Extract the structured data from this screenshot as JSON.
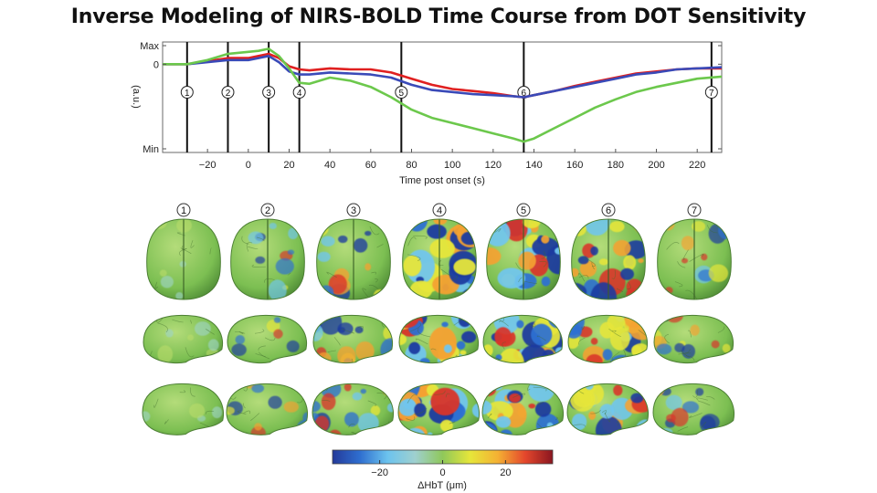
{
  "slide": {
    "title": "Inverse Modeling of NIRS-BOLD Time Course from DOT Sensitivity"
  },
  "chart_data": [
    {
      "type": "line",
      "title": "",
      "xlabel": "Time post onset (s)",
      "ylabel": "(a.u.)",
      "xlim": [
        -42,
        232
      ],
      "ylim": [
        0,
        1
      ],
      "x_ticks": [
        {
          "value": -20,
          "label": "−20"
        },
        {
          "value": 0,
          "label": "0"
        },
        {
          "value": 20,
          "label": "20"
        },
        {
          "value": 40,
          "label": "40"
        },
        {
          "value": 60,
          "label": "60"
        },
        {
          "value": 80,
          "label": "80"
        },
        {
          "value": 100,
          "label": "100"
        },
        {
          "value": 120,
          "label": "120"
        },
        {
          "value": 140,
          "label": "140"
        },
        {
          "value": 160,
          "label": "160"
        },
        {
          "value": 180,
          "label": "180"
        },
        {
          "value": 200,
          "label": "200"
        },
        {
          "value": 220,
          "label": "220"
        }
      ],
      "y_ticks": [
        {
          "value": 1.0,
          "label": "Max"
        },
        {
          "value": 0.82,
          "label": "0"
        },
        {
          "value": 0.0,
          "label": "Min"
        }
      ],
      "time_markers": [
        {
          "x": -30,
          "label": "1"
        },
        {
          "x": -10,
          "label": "2"
        },
        {
          "x": 10,
          "label": "3"
        },
        {
          "x": 25,
          "label": "4"
        },
        {
          "x": 75,
          "label": "5"
        },
        {
          "x": 135,
          "label": "6"
        },
        {
          "x": 227,
          "label": "7"
        }
      ],
      "series": [
        {
          "color": "#e02020",
          "x": [
            -42,
            -30,
            -20,
            -10,
            0,
            5,
            10,
            15,
            20,
            25,
            30,
            40,
            50,
            60,
            70,
            80,
            90,
            100,
            110,
            120,
            130,
            135,
            140,
            150,
            160,
            170,
            180,
            190,
            200,
            210,
            220,
            232
          ],
          "y": [
            0.82,
            0.82,
            0.85,
            0.88,
            0.88,
            0.9,
            0.92,
            0.88,
            0.8,
            0.77,
            0.76,
            0.78,
            0.77,
            0.77,
            0.74,
            0.68,
            0.62,
            0.58,
            0.56,
            0.54,
            0.51,
            0.5,
            0.52,
            0.56,
            0.61,
            0.65,
            0.69,
            0.73,
            0.75,
            0.77,
            0.78,
            0.78
          ]
        },
        {
          "color": "#3a4ab8",
          "x": [
            -42,
            -30,
            -20,
            -10,
            0,
            5,
            10,
            15,
            20,
            25,
            30,
            40,
            50,
            60,
            70,
            80,
            90,
            100,
            110,
            120,
            130,
            135,
            140,
            150,
            160,
            170,
            180,
            190,
            200,
            210,
            220,
            232
          ],
          "y": [
            0.82,
            0.82,
            0.84,
            0.86,
            0.86,
            0.88,
            0.9,
            0.84,
            0.75,
            0.72,
            0.72,
            0.74,
            0.73,
            0.72,
            0.69,
            0.62,
            0.57,
            0.55,
            0.53,
            0.52,
            0.51,
            0.5,
            0.52,
            0.56,
            0.6,
            0.64,
            0.68,
            0.72,
            0.74,
            0.77,
            0.78,
            0.79
          ]
        },
        {
          "color": "#6cc84c",
          "x": [
            -42,
            -30,
            -20,
            -10,
            0,
            5,
            10,
            15,
            20,
            25,
            30,
            40,
            50,
            60,
            70,
            80,
            90,
            100,
            110,
            120,
            130,
            135,
            140,
            150,
            160,
            170,
            180,
            190,
            200,
            210,
            220,
            232
          ],
          "y": [
            0.82,
            0.82,
            0.86,
            0.92,
            0.94,
            0.95,
            0.97,
            0.9,
            0.78,
            0.64,
            0.63,
            0.69,
            0.66,
            0.6,
            0.5,
            0.38,
            0.3,
            0.25,
            0.2,
            0.15,
            0.1,
            0.07,
            0.1,
            0.2,
            0.3,
            0.4,
            0.48,
            0.55,
            0.6,
            0.64,
            0.68,
            0.7
          ]
        }
      ]
    },
    {
      "type": "heatmap",
      "colorbar": {
        "min": -35,
        "max": 35,
        "ticks": [
          {
            "value": -20,
            "label": "−20"
          },
          {
            "value": 0,
            "label": "0"
          },
          {
            "value": 20,
            "label": "20"
          }
        ],
        "label": "ΔHbT (μm)",
        "colors": [
          "#243a9a",
          "#2f6fd0",
          "#6cc3ee",
          "#9fd0cf",
          "#8fc85a",
          "#e6e63a",
          "#f4b133",
          "#e4472c",
          "#8a1620"
        ]
      },
      "panels": [
        {
          "label": "1",
          "activity": 0.15
        },
        {
          "label": "2",
          "activity": 0.3
        },
        {
          "label": "3",
          "activity": 0.55
        },
        {
          "label": "4",
          "activity": 1.0
        },
        {
          "label": "5",
          "activity": 0.95
        },
        {
          "label": "6",
          "activity": 0.85
        },
        {
          "label": "7",
          "activity": 0.35
        }
      ],
      "views": [
        "top",
        "side",
        "side"
      ]
    }
  ]
}
